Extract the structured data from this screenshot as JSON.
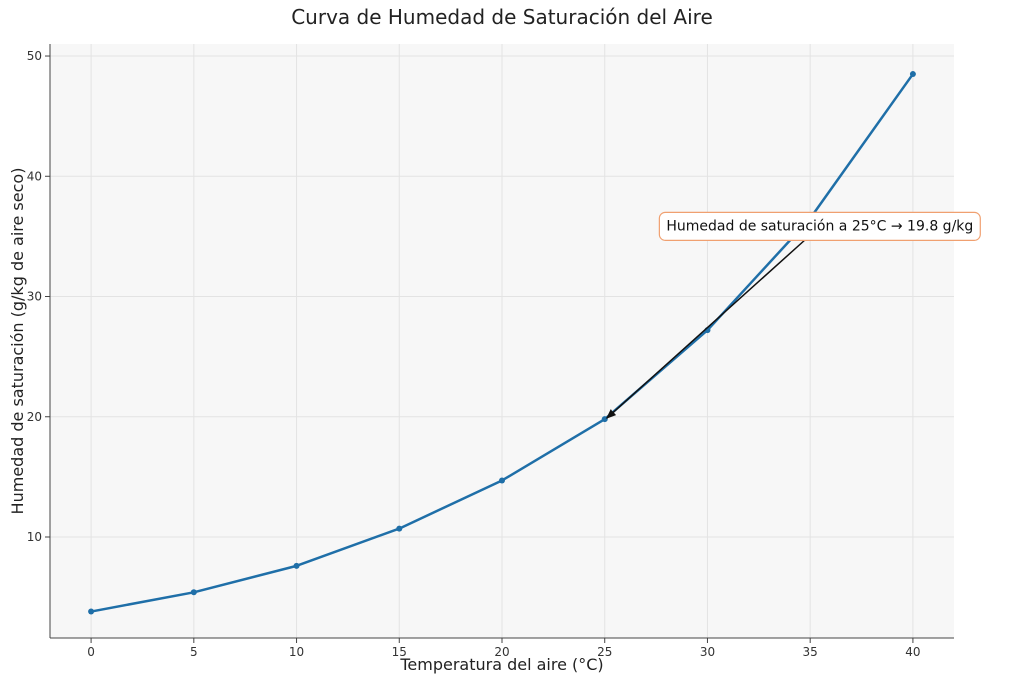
{
  "chart_data": {
    "type": "line",
    "title": "Curva de Humedad de Saturación del Aire",
    "xlabel": "Temperatura del aire (°C)",
    "ylabel": "Humedad de saturación (g/kg de aire seco)",
    "xlim": [
      -2,
      42
    ],
    "ylim": [
      1.6,
      51
    ],
    "xticks": [
      0,
      5,
      10,
      15,
      20,
      25,
      30,
      35,
      40
    ],
    "yticks": [
      10,
      20,
      30,
      40,
      50
    ],
    "grid": true,
    "series": [
      {
        "color": "#1f6fa8",
        "x": [
          0,
          5,
          10,
          15,
          20,
          25,
          30,
          35,
          40
        ],
        "y": [
          3.8,
          5.4,
          7.6,
          10.7,
          14.7,
          19.8,
          27.2,
          36.5,
          48.5
        ]
      }
    ],
    "annotation": {
      "text": "Humedad de saturación a 25°C → 19.8 g/kg",
      "point": [
        25,
        19.8
      ],
      "text_pos": [
        28,
        35.5
      ],
      "box_edge_color": "#f0a070"
    }
  }
}
